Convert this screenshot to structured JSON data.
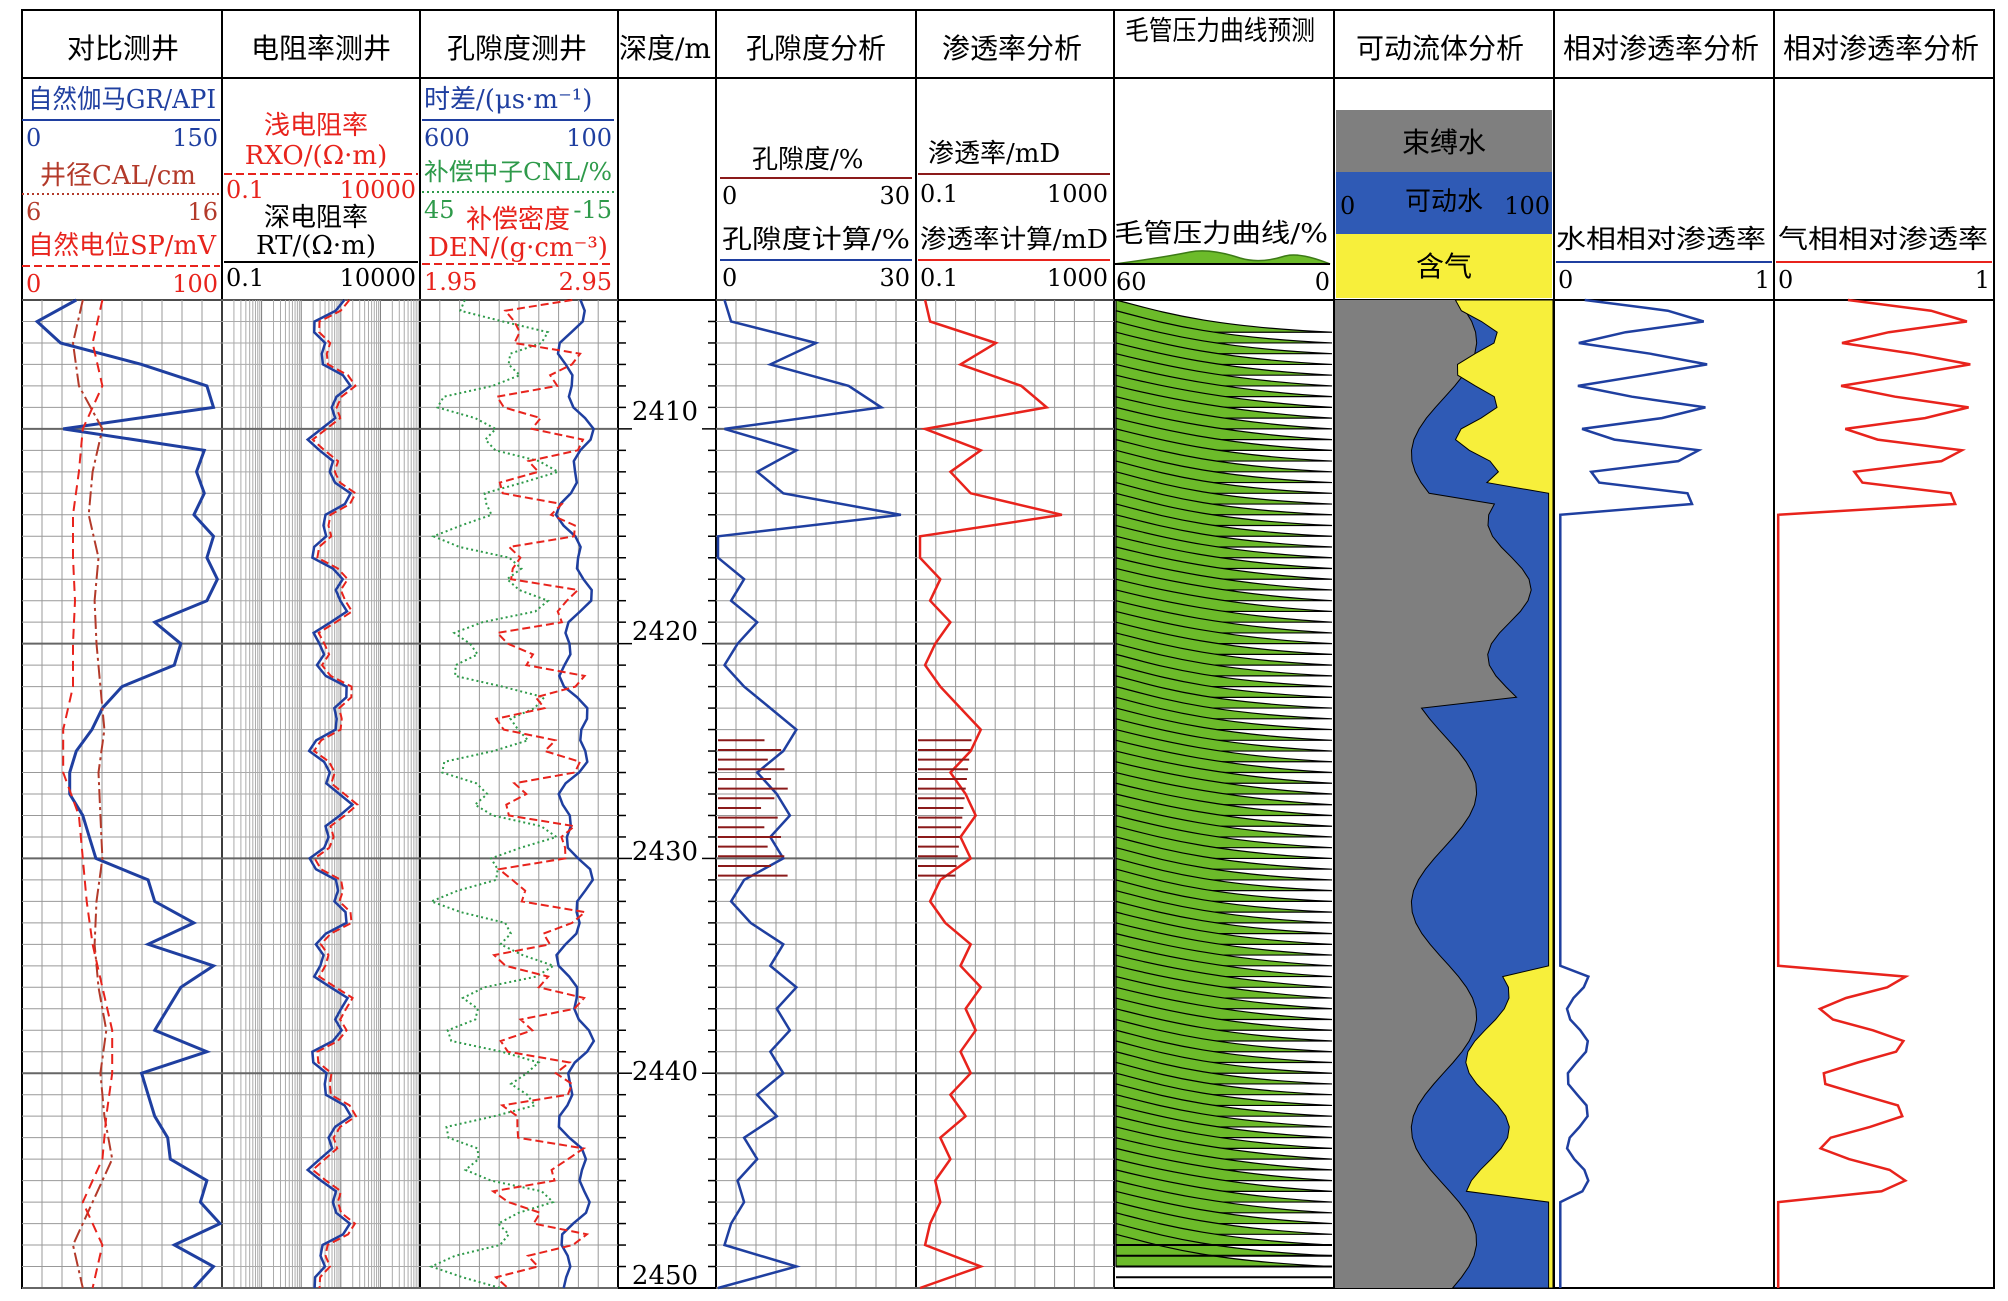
{
  "chart_data": {
    "type": "line",
    "depth_axis": {
      "label": "深度/m",
      "range": [
        2404,
        2450
      ],
      "ticks": [
        "2410",
        "2420",
        "2430",
        "2440",
        "2450"
      ],
      "grid": true
    },
    "tracks": [
      {
        "title": "对比测井",
        "curves": [
          {
            "name": "自然伽马GR/API",
            "min": "0",
            "max": "150",
            "color": "#1f3fa0",
            "style": "solid",
            "depth": [
              2404,
              2405,
              2406,
              2407,
              2408,
              2409,
              2410,
              2411,
              2412,
              2413,
              2414,
              2415,
              2416,
              2417,
              2418,
              2419,
              2420,
              2421,
              2422,
              2423,
              2424,
              2425,
              2426,
              2427,
              2428,
              2429,
              2430,
              2431,
              2432,
              2433,
              2434,
              2435,
              2436,
              2437,
              2438,
              2439,
              2440,
              2441,
              2442,
              2443,
              2444,
              2445,
              2446,
              2447,
              2448,
              2449,
              2450
            ],
            "values": [
              40,
              10,
              28,
              90,
              140,
              145,
              30,
              138,
              132,
              138,
              130,
              145,
              140,
              148,
              140,
              100,
              120,
              115,
              75,
              60,
              52,
              40,
              35,
              35,
              45,
              50,
              55,
              95,
              100,
              130,
              95,
              145,
              120,
              110,
              100,
              140,
              90,
              95,
              100,
              110,
              112,
              140,
              135,
              150,
              115,
              145,
              130
            ]
          },
          {
            "name": "井径CAL/cm",
            "min": "6",
            "max": "16",
            "color": "#b33a2a",
            "style": "dashdot",
            "depth": [
              2404,
              2406,
              2408,
              2410,
              2412,
              2414,
              2416,
              2418,
              2420,
              2422,
              2424,
              2426,
              2428,
              2430,
              2432,
              2434,
              2436,
              2438,
              2440,
              2442,
              2444,
              2446,
              2448,
              2450
            ],
            "values": [
              9,
              8.5,
              8.8,
              10,
              9.5,
              9.3,
              9.8,
              9.6,
              9.7,
              9.9,
              10.1,
              9.8,
              9.9,
              10,
              9.7,
              9.6,
              9.8,
              10.2,
              9.9,
              10.1,
              10.5,
              9.5,
              8.5,
              9
            ]
          },
          {
            "name": "自然电位SP/mV",
            "min": "0",
            "max": "100",
            "color": "#e8231c",
            "style": "dashed",
            "depth": [
              2404,
              2406,
              2408,
              2410,
              2412,
              2414,
              2416,
              2418,
              2420,
              2422,
              2424,
              2426,
              2428,
              2430,
              2432,
              2434,
              2436,
              2438,
              2440,
              2442,
              2444,
              2446,
              2448,
              2450
            ],
            "values": [
              40,
              35,
              40,
              30,
              28,
              25,
              25,
              26,
              25,
              25,
              20,
              20,
              28,
              30,
              32,
              35,
              40,
              45,
              45,
              42,
              40,
              30,
              40,
              35
            ]
          }
        ]
      },
      {
        "title": "电阻率测井",
        "curves": [
          {
            "name": "浅电阻率",
            "sub": "RXO/(Ω·m)",
            "min": "0.1",
            "max": "10000",
            "color": "#e8231c",
            "style": "dashed"
          },
          {
            "name": "深电阻率",
            "sub": "RT/(Ω·m)",
            "min": "0.1",
            "max": "10000",
            "color": "#1f3fa0",
            "style": "solid"
          }
        ]
      },
      {
        "title": "孔隙度测井",
        "curves": [
          {
            "name": "时差/(μs·m⁻¹)",
            "min": "600",
            "max": "100",
            "color": "#1f3fa0",
            "style": "solid"
          },
          {
            "name": "补偿中子CNL/%",
            "min": "45",
            "max": "-15",
            "color": "#2e9a4a",
            "style": "dotted"
          },
          {
            "name": "补偿密度",
            "sub": "DEN/(g·cm⁻³)",
            "min": "1.95",
            "max": "2.95",
            "color": "#e8231c",
            "style": "dashed"
          }
        ]
      },
      {
        "title": "深度/m"
      },
      {
        "title": "孔隙度分析",
        "curves": [
          {
            "name": "孔隙度/%",
            "min": "0",
            "max": "30",
            "color": "#8b1a1a",
            "style": "bars"
          },
          {
            "name": "孔隙度计算/%",
            "min": "0",
            "max": "30",
            "color": "#1f3fa0",
            "style": "solid",
            "depth": [
              2404,
              2405,
              2406,
              2407,
              2408,
              2409,
              2410,
              2411,
              2412,
              2413,
              2414,
              2415,
              2416,
              2417,
              2418,
              2419,
              2420,
              2421,
              2422,
              2423,
              2424,
              2425,
              2426,
              2427,
              2428,
              2429,
              2430,
              2431,
              2432,
              2433,
              2434,
              2435,
              2436,
              2437,
              2438,
              2439,
              2440,
              2441,
              2442,
              2443,
              2444,
              2445,
              2446,
              2447,
              2448,
              2449,
              2450
            ],
            "values": [
              1,
              2,
              15,
              8,
              20,
              25,
              1,
              12,
              6,
              10,
              28,
              0,
              0,
              4,
              2,
              6,
              3,
              1,
              4,
              8,
              12,
              10,
              6,
              9,
              11,
              8,
              10,
              4,
              2,
              5,
              10,
              8,
              12,
              9,
              11,
              8,
              10,
              6,
              9,
              4,
              6,
              3,
              4,
              2,
              1,
              12,
              0
            ]
          }
        ]
      },
      {
        "title": "渗透率分析",
        "curves": [
          {
            "name": "渗透率/mD",
            "min": "0.1",
            "max": "1000",
            "color": "#8b1a1a",
            "style": "bars"
          },
          {
            "name": "渗透率计算/mD",
            "min": "0.1",
            "max": "1000",
            "color": "#e8231c",
            "style": "solid"
          }
        ]
      },
      {
        "title": "毛管压力曲线预测",
        "curves": [
          {
            "name": "毛管压力曲线/%",
            "min": "60",
            "max": "0",
            "color": "#000000",
            "style": "fans",
            "fill": "#6cbb2a"
          }
        ]
      },
      {
        "title": "可动流体分析",
        "legend": [
          "束缚水",
          "可动水",
          "含气"
        ],
        "scale": {
          "min": "0",
          "max": "100"
        },
        "colors": {
          "bound": "#7f7f7f",
          "movable": "#2f5ab5",
          "gas": "#f7ef3b"
        }
      },
      {
        "title": "相对渗透率分析",
        "curves": [
          {
            "name": "水相相对渗透率",
            "min": "0",
            "max": "1",
            "color": "#1f3fa0",
            "style": "solid"
          }
        ]
      },
      {
        "title": "相对渗透率分析",
        "curves": [
          {
            "name": "气相相对渗透率",
            "min": "0",
            "max": "1",
            "color": "#e8231c",
            "style": "solid"
          }
        ]
      }
    ]
  }
}
